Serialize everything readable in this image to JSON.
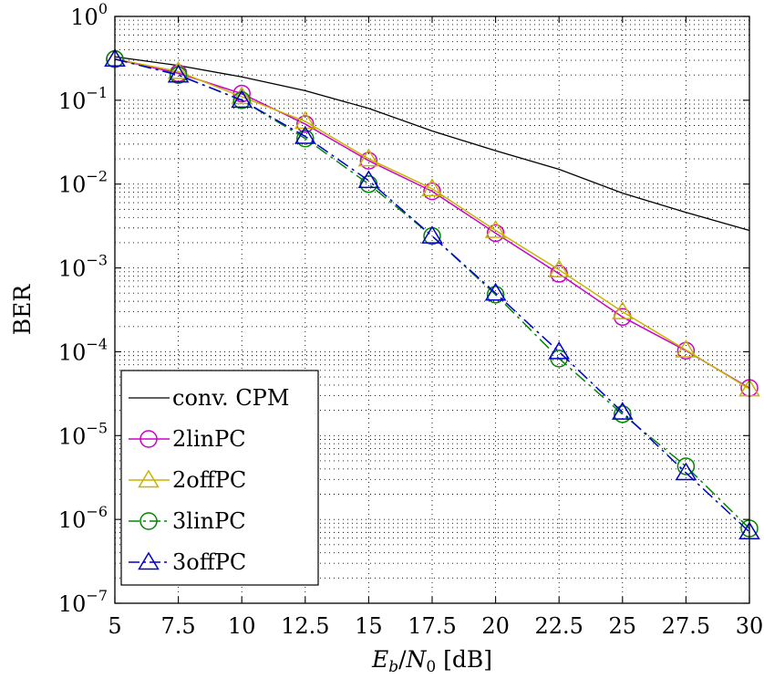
{
  "chart_data": {
    "type": "line",
    "title": "",
    "xlabel_parts": {
      "E": "E",
      "b": "b",
      "slash": "/",
      "N": "N",
      "zero": "0",
      "unit": " [dB]"
    },
    "ylabel": "BER",
    "x_scale": "linear",
    "y_scale": "log",
    "xlim": [
      5,
      30
    ],
    "ylim": [
      1e-07,
      1
    ],
    "x_ticks": [
      "5",
      "7.5",
      "10",
      "12.5",
      "15",
      "17.5",
      "20",
      "22.5",
      "25",
      "27.5",
      "30"
    ],
    "x_tick_values": [
      5,
      7.5,
      10,
      12.5,
      15,
      17.5,
      20,
      22.5,
      25,
      27.5,
      30
    ],
    "y_ticks": [
      {
        "base": "10",
        "exp": "0",
        "value": 1
      },
      {
        "base": "10",
        "exp": "−1",
        "value": 0.1
      },
      {
        "base": "10",
        "exp": "−2",
        "value": 0.01
      },
      {
        "base": "10",
        "exp": "−3",
        "value": 0.001
      },
      {
        "base": "10",
        "exp": "−4",
        "value": 0.0001
      },
      {
        "base": "10",
        "exp": "−5",
        "value": 1e-05
      },
      {
        "base": "10",
        "exp": "−6",
        "value": 1e-06
      },
      {
        "base": "10",
        "exp": "−7",
        "value": 1e-07
      }
    ],
    "grid": "dotted major and minor",
    "legend_position": "bottom-left",
    "x": [
      5,
      7.5,
      10,
      12.5,
      15,
      17.5,
      20,
      22.5,
      25,
      27.5,
      30
    ],
    "series": [
      {
        "name": "conv. CPM",
        "color": "#000000",
        "marker": "none",
        "dash": "solid",
        "values": [
          0.33,
          0.26,
          0.19,
          0.13,
          0.08,
          0.043,
          0.025,
          0.015,
          0.0078,
          0.0046,
          0.0028
        ]
      },
      {
        "name": "2linPC",
        "color": "#cc00cc",
        "marker": "circle",
        "dash": "solid",
        "values": [
          0.31,
          0.21,
          0.12,
          0.052,
          0.019,
          0.0082,
          0.0026,
          0.00085,
          0.00026,
          0.000103,
          3.7e-05
        ]
      },
      {
        "name": "2offPC",
        "color": "#c8b400",
        "marker": "triangle",
        "dash": "solid",
        "values": [
          0.31,
          0.22,
          0.11,
          0.056,
          0.02,
          0.0088,
          0.0028,
          0.00095,
          0.0003,
          0.000105,
          3.6e-05
        ]
      },
      {
        "name": "3linPC",
        "color": "#008800",
        "marker": "circle",
        "dash": "dashdot",
        "values": [
          0.31,
          0.2,
          0.1,
          0.035,
          0.01,
          0.0024,
          0.00048,
          8.3e-05,
          1.8e-05,
          4.3e-06,
          7.8e-07
        ]
      },
      {
        "name": "3offPC",
        "color": "#0000cc",
        "marker": "triangle",
        "dash": "dashdot",
        "values": [
          0.31,
          0.2,
          0.1,
          0.037,
          0.011,
          0.0024,
          0.0005,
          0.0001,
          1.9e-05,
          3.6e-06,
          7.1e-07
        ]
      }
    ]
  }
}
